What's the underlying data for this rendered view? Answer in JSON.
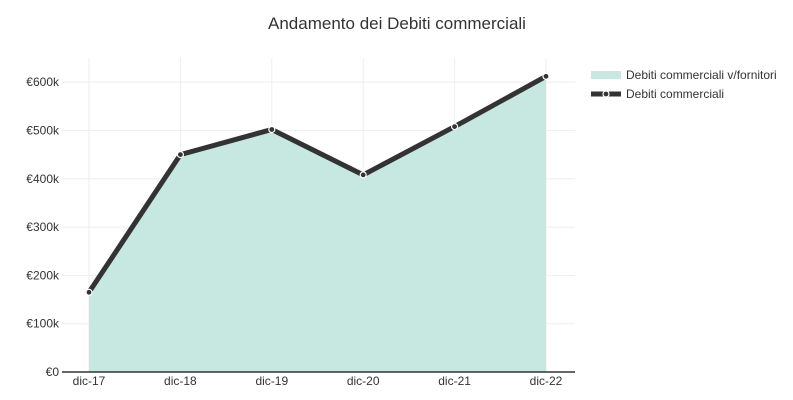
{
  "chart_data": {
    "type": "area",
    "title": "Andamento dei Debiti commerciali",
    "categories": [
      "dic-17",
      "dic-18",
      "dic-19",
      "dic-20",
      "dic-21",
      "dic-22"
    ],
    "series": [
      {
        "name": "Debiti commerciali v/fornitori",
        "kind": "area",
        "values": [
          165000,
          450000,
          502000,
          408000,
          508000,
          612000
        ],
        "color": "#c6e8e1"
      },
      {
        "name": "Debiti commerciali",
        "kind": "line",
        "values": [
          165000,
          450000,
          502000,
          408000,
          508000,
          612000
        ],
        "color": "#333333"
      }
    ],
    "ylim": [
      0,
      650000
    ],
    "y_ticks": [
      0,
      100000,
      200000,
      300000,
      400000,
      500000,
      600000
    ],
    "y_tick_labels": [
      "€0",
      "€100k",
      "€200k",
      "€300k",
      "€400k",
      "€500k",
      "€600k"
    ],
    "grid": true,
    "legend_position": "top-right"
  }
}
